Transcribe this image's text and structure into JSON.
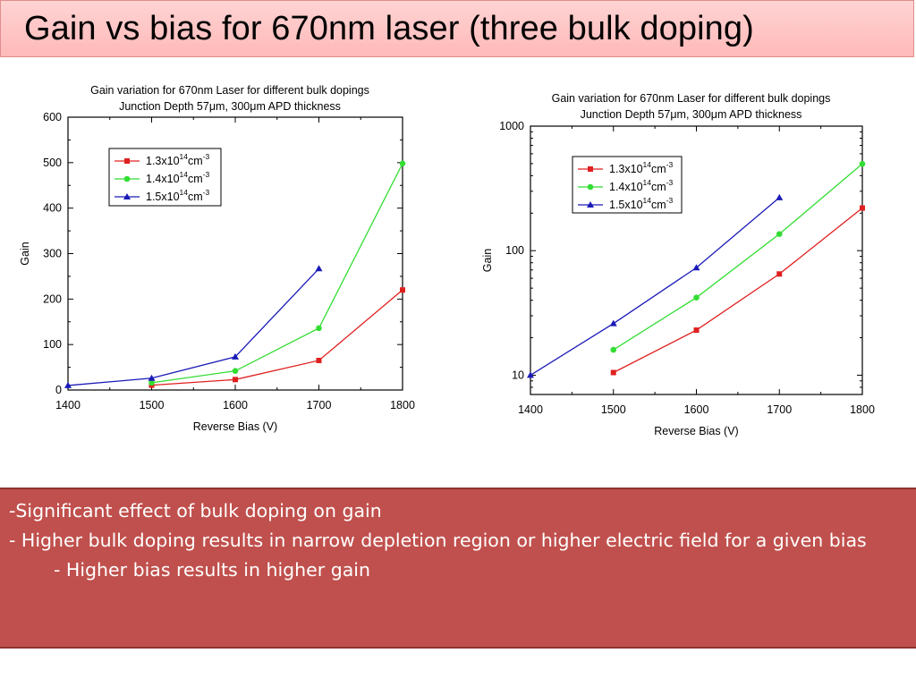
{
  "slide": {
    "title": "Gain vs bias for 670nm laser (three bulk doping)",
    "notes": [
      "-Significant effect of bulk doping on gain",
      "- Higher bulk doping results in narrow depletion region or higher electric field for a given bias",
      "- Higher bias results in higher gain"
    ],
    "colors": {
      "title_background": "#ffc4c4",
      "notes_background": "#c0504d",
      "series_1": "#e02020",
      "series_2": "#33dd33",
      "series_3": "#1a1ab8"
    }
  },
  "chart_data": [
    {
      "type": "line",
      "title_line1": "Gain variation for 670nm Laser for different bulk dopings",
      "title_line2": "Junction Depth  57μm, 300μm APD thickness",
      "xlabel": "Reverse Bias (V)",
      "ylabel": "Gain",
      "xlim": [
        1400,
        1800
      ],
      "ylim": [
        0,
        600
      ],
      "yscale": "linear",
      "xticks": [
        1400,
        1500,
        1600,
        1700,
        1800
      ],
      "yticks": [
        0,
        100,
        200,
        300,
        400,
        500,
        600
      ],
      "grid": false,
      "legend_position": "top-left",
      "series": [
        {
          "name_base": "1.3x10",
          "name_exp": "14",
          "name_unit": "cm",
          "name_unit_exp": "-3",
          "marker": "square",
          "color": "#e02020",
          "x": [
            1500,
            1600,
            1700,
            1800
          ],
          "y": [
            10.5,
            23,
            65,
            220
          ]
        },
        {
          "name_base": "1.4x10",
          "name_exp": "14",
          "name_unit": "cm",
          "name_unit_exp": "-3",
          "marker": "circle",
          "color": "#33dd33",
          "x": [
            1500,
            1600,
            1700,
            1800
          ],
          "y": [
            16,
            42,
            136,
            498
          ]
        },
        {
          "name_base": "1.5x10",
          "name_exp": "14",
          "name_unit": "cm",
          "name_unit_exp": "-3",
          "marker": "triangle",
          "color": "#1a1ab8",
          "x": [
            1400,
            1500,
            1600,
            1700
          ],
          "y": [
            10,
            26,
            73,
            267
          ]
        }
      ]
    },
    {
      "type": "line",
      "title_line1": "Gain variation for 670nm Laser for different bulk dopings",
      "title_line2": "Junction Depth  57μm, 300μm APD thickness",
      "xlabel": "Reverse Bias (V)",
      "ylabel": "Gain",
      "xlim": [
        1400,
        1800
      ],
      "ylim": [
        7,
        1000
      ],
      "yscale": "log",
      "xticks": [
        1400,
        1500,
        1600,
        1700,
        1800
      ],
      "yticks": [
        10,
        100,
        1000
      ],
      "grid": false,
      "legend_position": "top-left",
      "series": [
        {
          "name_base": "1.3x10",
          "name_exp": "14",
          "name_unit": "cm",
          "name_unit_exp": "-3",
          "marker": "square",
          "color": "#e02020",
          "x": [
            1500,
            1600,
            1700,
            1800
          ],
          "y": [
            10.5,
            23,
            65,
            220
          ]
        },
        {
          "name_base": "1.4x10",
          "name_exp": "14",
          "name_unit": "cm",
          "name_unit_exp": "-3",
          "marker": "circle",
          "color": "#33dd33",
          "x": [
            1500,
            1600,
            1700,
            1800
          ],
          "y": [
            16,
            42,
            136,
            498
          ]
        },
        {
          "name_base": "1.5x10",
          "name_exp": "14",
          "name_unit": "cm",
          "name_unit_exp": "-3",
          "marker": "triangle",
          "color": "#1a1ab8",
          "x": [
            1400,
            1500,
            1600,
            1700
          ],
          "y": [
            10,
            26,
            73,
            267
          ]
        }
      ]
    }
  ]
}
